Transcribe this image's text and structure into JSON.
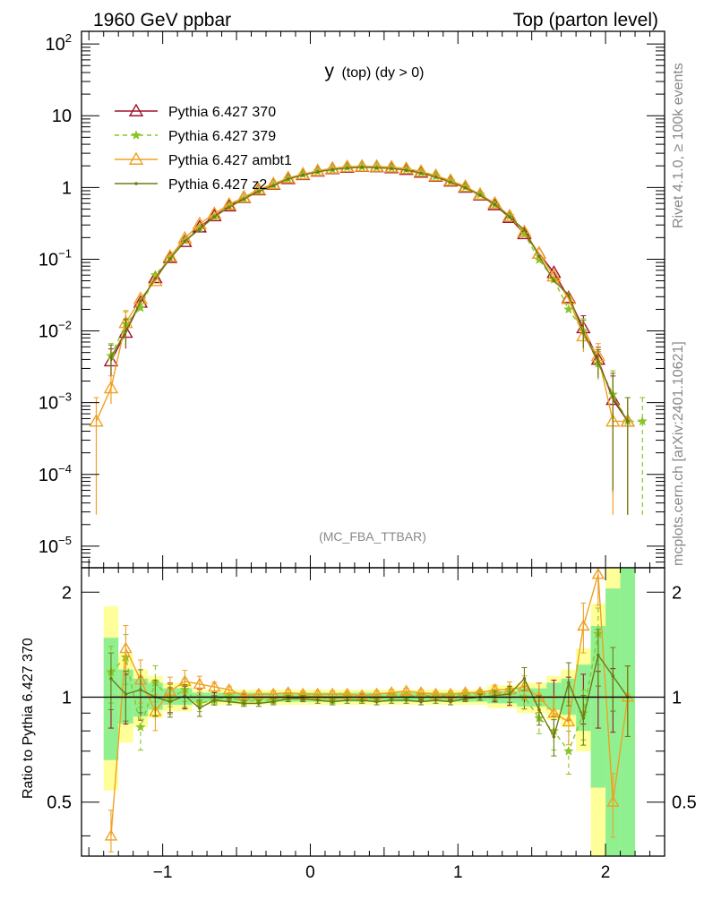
{
  "header": {
    "left": "1960 GeV ppbar",
    "right": "Top (parton level)"
  },
  "side": {
    "rivet": "Rivet 4.1.0, ≥ 100k events",
    "mcplots": "mcplots.cern.ch [arXiv:2401.10621]"
  },
  "chart_data": {
    "type": "line",
    "title": "y (top) (dy > 0)",
    "title_main": "y",
    "title_sub": "(top) (dy > 0)",
    "analysis": "(MC_FBA_TTBAR)",
    "xlabel": "",
    "ylabel_ratio": "Ratio to Pythia 6.427 370",
    "xlim": [
      -1.55,
      2.4
    ],
    "ylim": [
      5e-06,
      150
    ],
    "ratio_ylim": [
      0.35,
      2.35
    ],
    "x_ticks": [
      -1,
      0,
      1,
      2
    ],
    "x_tick_labels": [
      "−1",
      "0",
      "1",
      "2"
    ],
    "y_ticks": [
      {
        "v": 100,
        "base": "10",
        "exp": "2"
      },
      {
        "v": 10,
        "base": "10",
        "exp": ""
      },
      {
        "v": 1,
        "base": "1",
        "exp": ""
      },
      {
        "v": 0.1,
        "base": "10",
        "exp": "−1"
      },
      {
        "v": 0.01,
        "base": "10",
        "exp": "−2"
      },
      {
        "v": 0.001,
        "base": "10",
        "exp": "−3"
      },
      {
        "v": 0.0001,
        "base": "10",
        "exp": "−4"
      },
      {
        "v": 1e-05,
        "base": "10",
        "exp": "−5"
      }
    ],
    "ratio_ticks": [
      {
        "v": 0.5,
        "label": "0.5"
      },
      {
        "v": 1,
        "label": "1"
      },
      {
        "v": 2,
        "label": "2"
      }
    ],
    "bands": [
      {
        "x": [
          -1.4,
          -1.3
        ],
        "y1": [
          0.54,
          1.82
        ],
        "y2": [
          0.66,
          1.48
        ]
      },
      {
        "x": [
          -1.3,
          -1.2
        ],
        "y1": [
          0.74,
          1.33
        ],
        "y2": [
          0.84,
          1.2
        ]
      },
      {
        "x": [
          -1.2,
          -1.1
        ],
        "y1": [
          0.82,
          1.2
        ],
        "y2": [
          0.88,
          1.13
        ]
      },
      {
        "x": [
          -1.1,
          -1.0
        ],
        "y1": [
          0.87,
          1.15
        ],
        "y2": [
          0.92,
          1.1
        ]
      },
      {
        "x": [
          -1.0,
          -0.8
        ],
        "y1": [
          0.91,
          1.1
        ],
        "y2": [
          0.95,
          1.06
        ]
      },
      {
        "x": [
          -0.8,
          1.2
        ],
        "y1": [
          0.95,
          1.05
        ],
        "y2": [
          0.97,
          1.03
        ]
      },
      {
        "x": [
          1.2,
          1.4
        ],
        "y1": [
          0.93,
          1.08
        ],
        "y2": [
          0.96,
          1.04
        ]
      },
      {
        "x": [
          1.4,
          1.6
        ],
        "y1": [
          0.9,
          1.1
        ],
        "y2": [
          0.94,
          1.06
        ]
      },
      {
        "x": [
          1.6,
          1.7
        ],
        "y1": [
          0.86,
          1.15
        ],
        "y2": [
          0.92,
          1.1
        ]
      },
      {
        "x": [
          1.7,
          1.8
        ],
        "y1": [
          0.82,
          1.2
        ],
        "y2": [
          0.89,
          1.13
        ]
      },
      {
        "x": [
          1.8,
          1.9
        ],
        "y1": [
          0.7,
          1.38
        ],
        "y2": [
          0.8,
          1.24
        ]
      },
      {
        "x": [
          1.9,
          2.0
        ],
        "y1": [
          0.35,
          1.85
        ],
        "y2": [
          0.55,
          1.6
        ]
      },
      {
        "x": [
          2.0,
          2.1
        ],
        "y1": [
          0.35,
          2.35
        ],
        "y2": [
          0.35,
          2.05
        ]
      },
      {
        "x": [
          2.1,
          2.2
        ],
        "y1": [
          0.35,
          2.35
        ],
        "y2": [
          0.35,
          2.35
        ]
      }
    ],
    "series": [
      {
        "name": "Pythia 6.427 370",
        "color": "#a0122a",
        "dash": "",
        "marker": "triangle",
        "x": [
          -1.35,
          -1.25,
          -1.15,
          -1.05,
          -0.95,
          -0.85,
          -0.75,
          -0.65,
          -0.55,
          -0.45,
          -0.35,
          -0.25,
          -0.15,
          -0.05,
          0.05,
          0.15,
          0.25,
          0.35,
          0.45,
          0.55,
          0.65,
          0.75,
          0.85,
          0.95,
          1.05,
          1.15,
          1.25,
          1.35,
          1.45,
          1.55,
          1.65,
          1.75,
          1.85,
          1.95,
          2.05,
          2.15
        ],
        "y": [
          0.0038,
          0.0095,
          0.025,
          0.055,
          0.105,
          0.175,
          0.28,
          0.4,
          0.55,
          0.72,
          0.92,
          1.1,
          1.32,
          1.5,
          1.68,
          1.82,
          1.9,
          1.95,
          1.93,
          1.87,
          1.77,
          1.62,
          1.43,
          1.22,
          1.0,
          0.78,
          0.57,
          0.38,
          0.225,
          0.12,
          0.065,
          0.029,
          0.011,
          0.004,
          0.0011,
          0.00055
        ],
        "r": [
          1,
          1,
          1,
          1,
          1,
          1,
          1,
          1,
          1,
          1,
          1,
          1,
          1,
          1,
          1,
          1,
          1,
          1,
          1,
          1,
          1,
          1,
          1,
          1,
          1,
          1,
          1,
          1,
          1,
          1,
          1,
          1,
          1,
          1,
          1,
          1
        ]
      },
      {
        "name": "Pythia 6.427 379",
        "color": "#88c425",
        "dash": "5,4",
        "marker": "star",
        "x": [
          -1.35,
          -1.25,
          -1.15,
          -1.05,
          -0.95,
          -0.85,
          -0.75,
          -0.65,
          -0.55,
          -0.45,
          -0.35,
          -0.25,
          -0.15,
          -0.05,
          0.05,
          0.15,
          0.25,
          0.35,
          0.45,
          0.55,
          0.65,
          0.75,
          0.85,
          0.95,
          1.05,
          1.15,
          1.25,
          1.35,
          1.45,
          1.55,
          1.65,
          1.75,
          1.85,
          1.95,
          2.05,
          2.15,
          2.25
        ],
        "y": [
          0.0045,
          0.0125,
          0.021,
          0.06,
          0.104,
          0.183,
          0.268,
          0.39,
          0.55,
          0.7,
          0.9,
          1.08,
          1.32,
          1.52,
          1.68,
          1.79,
          1.92,
          1.94,
          1.91,
          1.88,
          1.79,
          1.63,
          1.44,
          1.23,
          1.02,
          0.8,
          0.58,
          0.4,
          0.225,
          0.098,
          0.052,
          0.02,
          0.01,
          0.0035,
          0.0013,
          0.00055,
          0.00055
        ],
        "r": [
          1.18,
          1.3,
          0.82,
          1.1,
          0.99,
          1.05,
          0.96,
          0.98,
          1.0,
          0.97,
          0.98,
          0.98,
          1.0,
          1.01,
          1.0,
          0.98,
          1.01,
          0.99,
          0.99,
          1.01,
          1.01,
          1.01,
          1.01,
          1.01,
          1.02,
          1.03,
          1.02,
          1.05,
          1.0,
          0.87,
          0.8,
          0.7,
          0.9,
          1.52,
          null,
          null,
          null
        ]
      },
      {
        "name": "Pythia 6.427 ambt1",
        "color": "#f0a020",
        "dash": "",
        "marker": "triangle",
        "x": [
          -1.45,
          -1.35,
          -1.25,
          -1.15,
          -1.05,
          -0.95,
          -0.85,
          -0.75,
          -0.65,
          -0.55,
          -0.45,
          -0.35,
          -0.25,
          -0.15,
          -0.05,
          0.05,
          0.15,
          0.25,
          0.35,
          0.45,
          0.55,
          0.65,
          0.75,
          0.85,
          0.95,
          1.05,
          1.15,
          1.25,
          1.35,
          1.45,
          1.55,
          1.65,
          1.75,
          1.85,
          1.95,
          2.05,
          2.15
        ],
        "y": [
          0.00055,
          0.0016,
          0.013,
          0.028,
          0.05,
          0.109,
          0.195,
          0.31,
          0.43,
          0.58,
          0.73,
          0.94,
          1.12,
          1.36,
          1.53,
          1.71,
          1.85,
          1.94,
          1.97,
          1.96,
          1.92,
          1.83,
          1.67,
          1.46,
          1.25,
          1.03,
          0.8,
          0.6,
          0.4,
          0.24,
          0.12,
          0.058,
          0.028,
          0.0085,
          0.0045,
          0.00055,
          0.00055
        ],
        "r": [
          null,
          0.4,
          1.38,
          1.12,
          0.91,
          1.04,
          1.11,
          1.09,
          1.07,
          1.05,
          1.01,
          1.02,
          1.02,
          1.03,
          1.02,
          1.02,
          1.02,
          1.02,
          1.01,
          1.02,
          1.03,
          1.04,
          1.03,
          1.02,
          1.02,
          1.03,
          1.03,
          1.05,
          1.05,
          1.07,
          1.0,
          0.9,
          0.85,
          1.6,
          2.25,
          0.5,
          1.0
        ]
      },
      {
        "name": "Pythia 6.427 z2",
        "color": "#6e7b12",
        "dash": "",
        "marker": "dot",
        "x": [
          -1.35,
          -1.25,
          -1.15,
          -1.05,
          -0.95,
          -0.85,
          -0.75,
          -0.65,
          -0.55,
          -0.45,
          -0.35,
          -0.25,
          -0.15,
          -0.05,
          0.05,
          0.15,
          0.25,
          0.35,
          0.45,
          0.55,
          0.65,
          0.75,
          0.85,
          0.95,
          1.05,
          1.15,
          1.25,
          1.35,
          1.45,
          1.55,
          1.65,
          1.75,
          1.85,
          1.95,
          2.05,
          2.15
        ],
        "y": [
          0.0043,
          0.0099,
          0.026,
          0.054,
          0.101,
          0.178,
          0.262,
          0.39,
          0.53,
          0.69,
          0.88,
          1.06,
          1.31,
          1.49,
          1.65,
          1.78,
          1.86,
          1.92,
          1.88,
          1.84,
          1.74,
          1.58,
          1.4,
          1.18,
          0.99,
          0.78,
          0.58,
          0.39,
          0.255,
          0.11,
          0.05,
          0.032,
          0.0095,
          0.0037,
          0.0012,
          0.00055
        ],
        "r": [
          1.13,
          1.02,
          1.05,
          1.0,
          0.97,
          1.01,
          0.93,
          0.98,
          0.97,
          0.96,
          0.96,
          0.97,
          0.99,
          0.99,
          0.98,
          0.97,
          0.98,
          0.98,
          0.97,
          0.98,
          0.98,
          0.97,
          0.98,
          0.97,
          0.99,
          1.0,
          1.01,
          1.02,
          1.13,
          0.92,
          0.77,
          1.1,
          0.87,
          1.32,
          1.15,
          1.0
        ]
      }
    ]
  }
}
